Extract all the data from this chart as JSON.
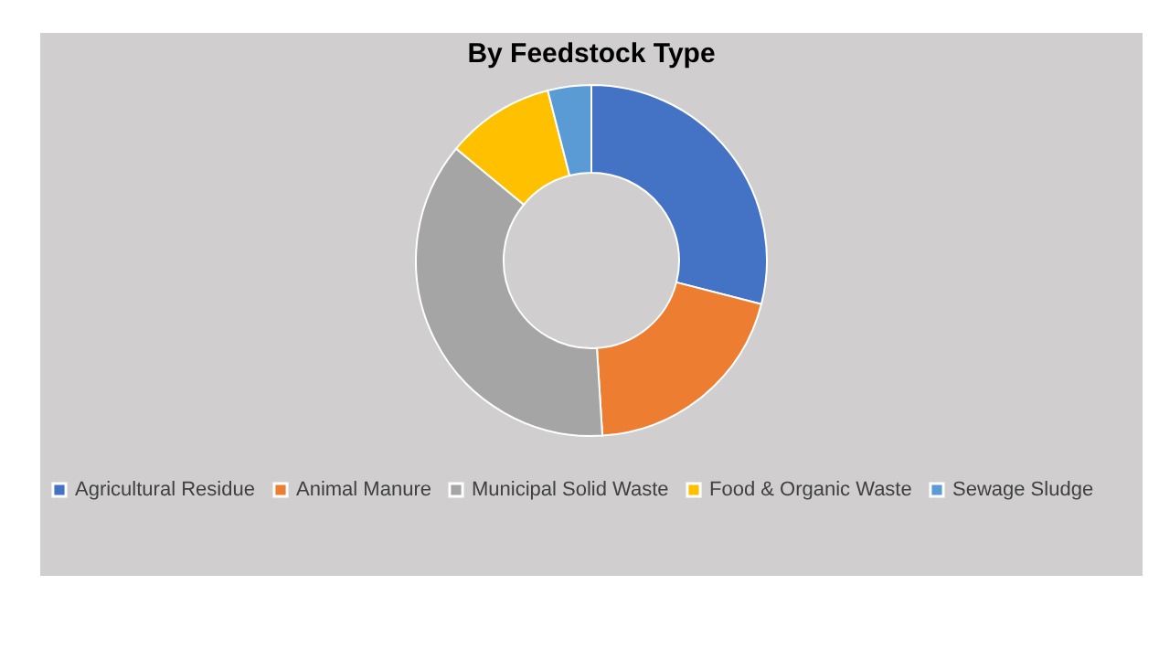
{
  "chart_data": {
    "type": "donut",
    "title": "By Feedstock Type",
    "categories": [
      "Agricultural Residue",
      "Animal Manure",
      "Municipal Solid Waste",
      "Food & Organic Waste",
      "Sewage Sludge"
    ],
    "values": [
      29,
      20,
      37,
      10,
      4
    ],
    "colors": [
      "#4472c4",
      "#ed7d31",
      "#a5a5a5",
      "#ffc000",
      "#5b9bd5"
    ],
    "legend": "bottom"
  }
}
